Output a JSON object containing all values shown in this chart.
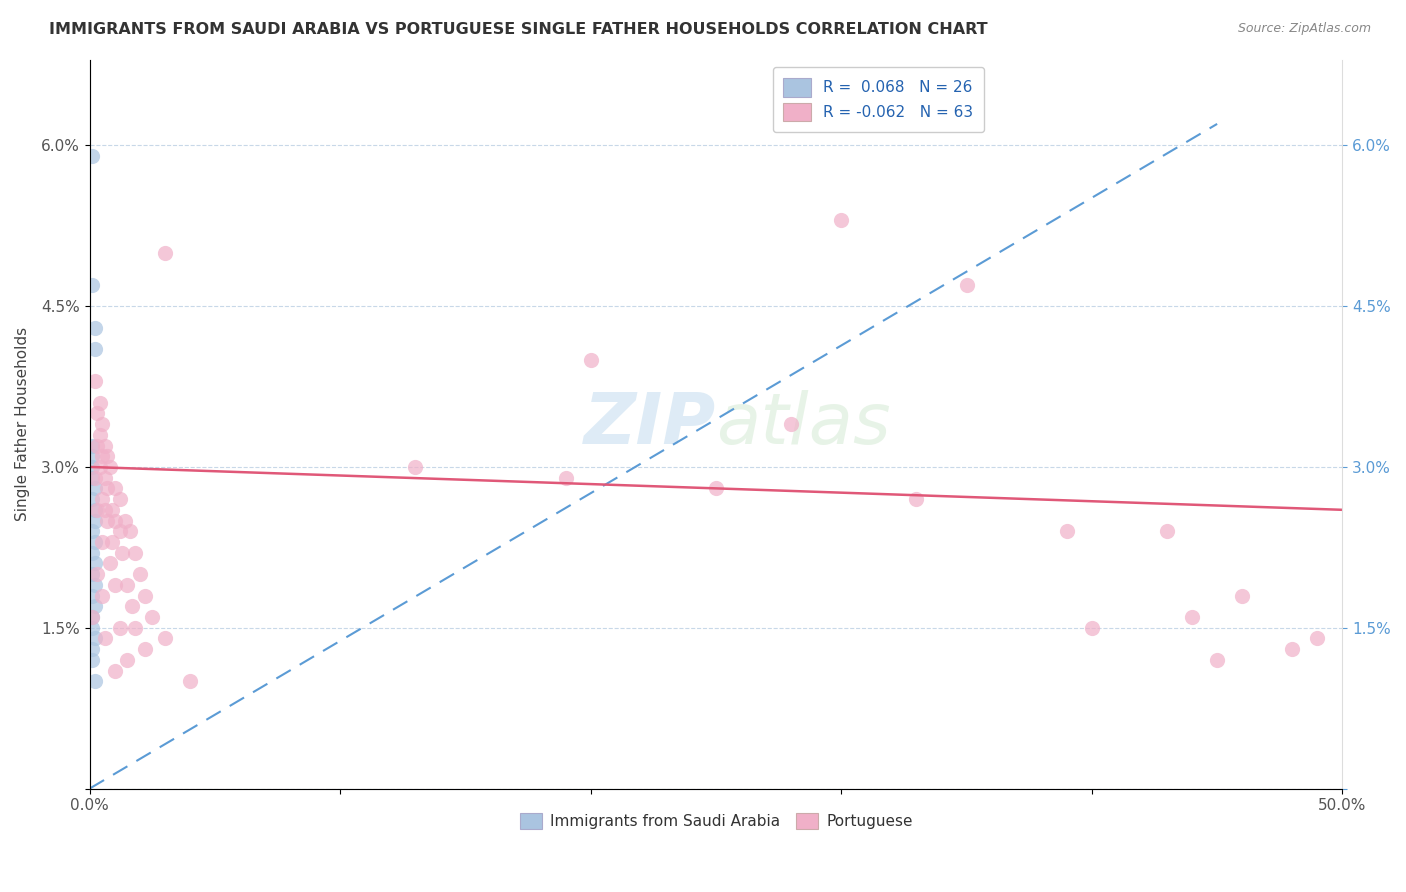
{
  "title": "IMMIGRANTS FROM SAUDI ARABIA VS PORTUGUESE SINGLE FATHER HOUSEHOLDS CORRELATION CHART",
  "source": "Source: ZipAtlas.com",
  "ylabel": "Single Father Households",
  "xlim": [
    0.0,
    0.5
  ],
  "ylim": [
    0.0,
    0.068
  ],
  "ytick_labels": [
    "",
    "1.5%",
    "3.0%",
    "4.5%",
    "6.0%"
  ],
  "ytick_values": [
    0.0,
    0.015,
    0.03,
    0.045,
    0.06
  ],
  "xtick_labels": [
    "0.0%",
    "",
    "",
    "",
    "",
    "50.0%"
  ],
  "xtick_values": [
    0.0,
    0.1,
    0.2,
    0.3,
    0.4,
    0.5
  ],
  "blue_color": "#aac4e0",
  "pink_color": "#f0b0c8",
  "trendline_blue_color": "#5b9bd5",
  "trendline_pink_color": "#e05878",
  "watermark": "ZIPatlas",
  "blue_trendline": [
    [
      0.0,
      0.0
    ],
    [
      0.45,
      0.062
    ]
  ],
  "pink_trendline": [
    [
      0.0,
      0.03
    ],
    [
      0.5,
      0.026
    ]
  ],
  "blue_scatter": [
    [
      0.001,
      0.059
    ],
    [
      0.001,
      0.047
    ],
    [
      0.002,
      0.043
    ],
    [
      0.002,
      0.041
    ],
    [
      0.001,
      0.032
    ],
    [
      0.001,
      0.031
    ],
    [
      0.001,
      0.03
    ],
    [
      0.001,
      0.029
    ],
    [
      0.002,
      0.028
    ],
    [
      0.001,
      0.027
    ],
    [
      0.002,
      0.026
    ],
    [
      0.002,
      0.025
    ],
    [
      0.001,
      0.024
    ],
    [
      0.002,
      0.023
    ],
    [
      0.001,
      0.022
    ],
    [
      0.002,
      0.021
    ],
    [
      0.001,
      0.02
    ],
    [
      0.002,
      0.019
    ],
    [
      0.001,
      0.018
    ],
    [
      0.002,
      0.017
    ],
    [
      0.001,
      0.016
    ],
    [
      0.001,
      0.015
    ],
    [
      0.002,
      0.014
    ],
    [
      0.001,
      0.013
    ],
    [
      0.001,
      0.012
    ],
    [
      0.002,
      0.01
    ]
  ],
  "pink_scatter": [
    [
      0.002,
      0.038
    ],
    [
      0.004,
      0.036
    ],
    [
      0.003,
      0.035
    ],
    [
      0.005,
      0.034
    ],
    [
      0.004,
      0.033
    ],
    [
      0.006,
      0.032
    ],
    [
      0.003,
      0.032
    ],
    [
      0.007,
      0.031
    ],
    [
      0.005,
      0.031
    ],
    [
      0.008,
      0.03
    ],
    [
      0.004,
      0.03
    ],
    [
      0.006,
      0.029
    ],
    [
      0.002,
      0.029
    ],
    [
      0.01,
      0.028
    ],
    [
      0.007,
      0.028
    ],
    [
      0.005,
      0.027
    ],
    [
      0.012,
      0.027
    ],
    [
      0.009,
      0.026
    ],
    [
      0.006,
      0.026
    ],
    [
      0.003,
      0.026
    ],
    [
      0.014,
      0.025
    ],
    [
      0.01,
      0.025
    ],
    [
      0.007,
      0.025
    ],
    [
      0.016,
      0.024
    ],
    [
      0.012,
      0.024
    ],
    [
      0.009,
      0.023
    ],
    [
      0.005,
      0.023
    ],
    [
      0.018,
      0.022
    ],
    [
      0.013,
      0.022
    ],
    [
      0.008,
      0.021
    ],
    [
      0.003,
      0.02
    ],
    [
      0.02,
      0.02
    ],
    [
      0.015,
      0.019
    ],
    [
      0.01,
      0.019
    ],
    [
      0.005,
      0.018
    ],
    [
      0.022,
      0.018
    ],
    [
      0.017,
      0.017
    ],
    [
      0.001,
      0.016
    ],
    [
      0.025,
      0.016
    ],
    [
      0.018,
      0.015
    ],
    [
      0.012,
      0.015
    ],
    [
      0.006,
      0.014
    ],
    [
      0.03,
      0.014
    ],
    [
      0.022,
      0.013
    ],
    [
      0.015,
      0.012
    ],
    [
      0.01,
      0.011
    ],
    [
      0.04,
      0.01
    ],
    [
      0.3,
      0.053
    ],
    [
      0.03,
      0.05
    ],
    [
      0.35,
      0.047
    ],
    [
      0.2,
      0.04
    ],
    [
      0.28,
      0.034
    ],
    [
      0.13,
      0.03
    ],
    [
      0.19,
      0.029
    ],
    [
      0.25,
      0.028
    ],
    [
      0.33,
      0.027
    ],
    [
      0.39,
      0.024
    ],
    [
      0.43,
      0.024
    ],
    [
      0.46,
      0.018
    ],
    [
      0.44,
      0.016
    ],
    [
      0.4,
      0.015
    ],
    [
      0.48,
      0.013
    ],
    [
      0.45,
      0.012
    ],
    [
      0.49,
      0.014
    ]
  ]
}
